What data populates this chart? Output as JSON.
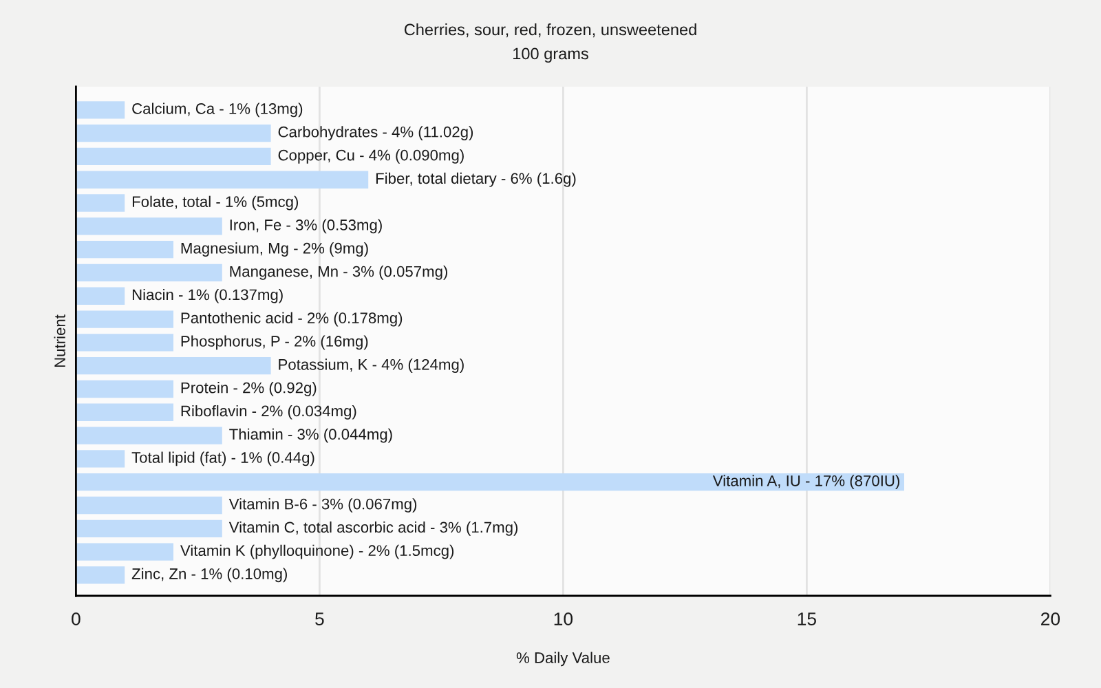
{
  "chart_data": {
    "type": "bar",
    "orientation": "horizontal",
    "title": "Cherries, sour, red, frozen, unsweetened",
    "subtitle": "100 grams",
    "xlabel": "% Daily Value",
    "ylabel": "Nutrient",
    "categories": [
      "Calcium, Ca - 1% (13mg)",
      "Carbohydrates - 4% (11.02g)",
      "Copper, Cu - 4% (0.090mg)",
      "Fiber, total dietary - 6% (1.6g)",
      "Folate, total - 1% (5mcg)",
      "Iron, Fe - 3% (0.53mg)",
      "Magnesium, Mg - 2% (9mg)",
      "Manganese, Mn - 3% (0.057mg)",
      "Niacin - 1% (0.137mg)",
      "Pantothenic acid - 2% (0.178mg)",
      "Phosphorus, P - 2% (16mg)",
      "Potassium, K - 4% (124mg)",
      "Protein - 2% (0.92g)",
      "Riboflavin - 2% (0.034mg)",
      "Thiamin - 3% (0.044mg)",
      "Total lipid (fat) - 1% (0.44g)",
      "Vitamin A, IU - 17% (870IU)",
      "Vitamin B-6 - 3% (0.067mg)",
      "Vitamin C, total ascorbic acid - 3% (1.7mg)",
      "Vitamin K (phylloquinone) - 2% (1.5mcg)",
      "Zinc, Zn - 1% (0.10mg)"
    ],
    "values": [
      1,
      4,
      4,
      6,
      1,
      3,
      2,
      3,
      1,
      2,
      2,
      4,
      2,
      2,
      3,
      1,
      17,
      3,
      3,
      2,
      1
    ],
    "color": "#c0dcfa",
    "xlim": [
      0,
      20
    ],
    "xticks": [
      0,
      5,
      10,
      15,
      20
    ],
    "grid": "x"
  }
}
